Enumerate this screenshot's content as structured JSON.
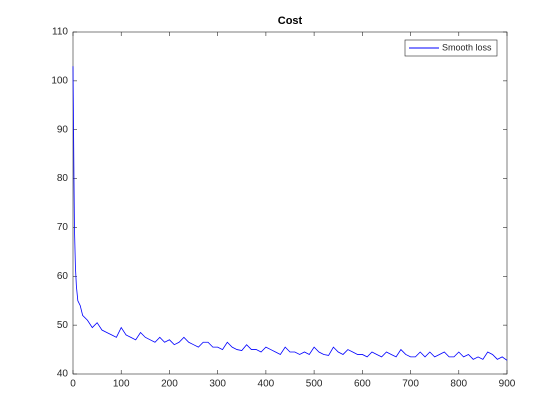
{
  "chart_data": {
    "type": "line",
    "title": "Cost",
    "x": [
      0,
      1,
      2,
      3,
      5,
      7,
      10,
      15,
      20,
      30,
      40,
      50,
      60,
      70,
      80,
      90,
      100,
      110,
      120,
      130,
      140,
      150,
      160,
      170,
      180,
      190,
      200,
      210,
      220,
      230,
      240,
      250,
      260,
      270,
      280,
      290,
      300,
      310,
      320,
      330,
      340,
      350,
      360,
      370,
      380,
      390,
      400,
      410,
      420,
      430,
      440,
      450,
      460,
      470,
      480,
      490,
      500,
      510,
      520,
      530,
      540,
      550,
      560,
      570,
      580,
      590,
      600,
      610,
      620,
      630,
      640,
      650,
      660,
      670,
      680,
      690,
      700,
      710,
      720,
      730,
      740,
      750,
      760,
      770,
      780,
      790,
      800,
      810,
      820,
      830,
      840,
      850,
      860,
      870,
      880,
      890,
      900
    ],
    "series": [
      {
        "name": "Smooth loss",
        "color": "#0000ff",
        "values": [
          103,
          92,
          80,
          70,
          62,
          58,
          55,
          54,
          52,
          51,
          49.5,
          50.5,
          49,
          48.5,
          48,
          47.5,
          49.5,
          48,
          47.5,
          47,
          48.5,
          47.5,
          47,
          46.5,
          47.5,
          46.5,
          47,
          46,
          46.5,
          47.5,
          46.5,
          46,
          45.5,
          46.5,
          46.5,
          45.5,
          45.5,
          45,
          46.5,
          45.5,
          45,
          44.8,
          46,
          45,
          45,
          44.5,
          45.5,
          45,
          44.5,
          44,
          45.5,
          44.5,
          44.5,
          44,
          44.5,
          44,
          45.5,
          44.5,
          44,
          43.8,
          45.5,
          44.5,
          44,
          45,
          44.5,
          44,
          44,
          43.5,
          44.5,
          44,
          43.5,
          44.5,
          44,
          43.5,
          45,
          44,
          43.5,
          43.5,
          44.5,
          43.5,
          44.5,
          43.5,
          44,
          44.5,
          43.5,
          43.5,
          44.5,
          43.5,
          44,
          43,
          43.5,
          43,
          44.5,
          44,
          43,
          43.5,
          42.8
        ]
      }
    ],
    "xlim": [
      0,
      900
    ],
    "xticks": [
      0,
      100,
      200,
      300,
      400,
      500,
      600,
      700,
      800,
      900
    ],
    "ylim": [
      40,
      110
    ],
    "yticks": [
      40,
      50,
      60,
      70,
      80,
      90,
      100,
      110
    ],
    "legend": "upper right"
  }
}
